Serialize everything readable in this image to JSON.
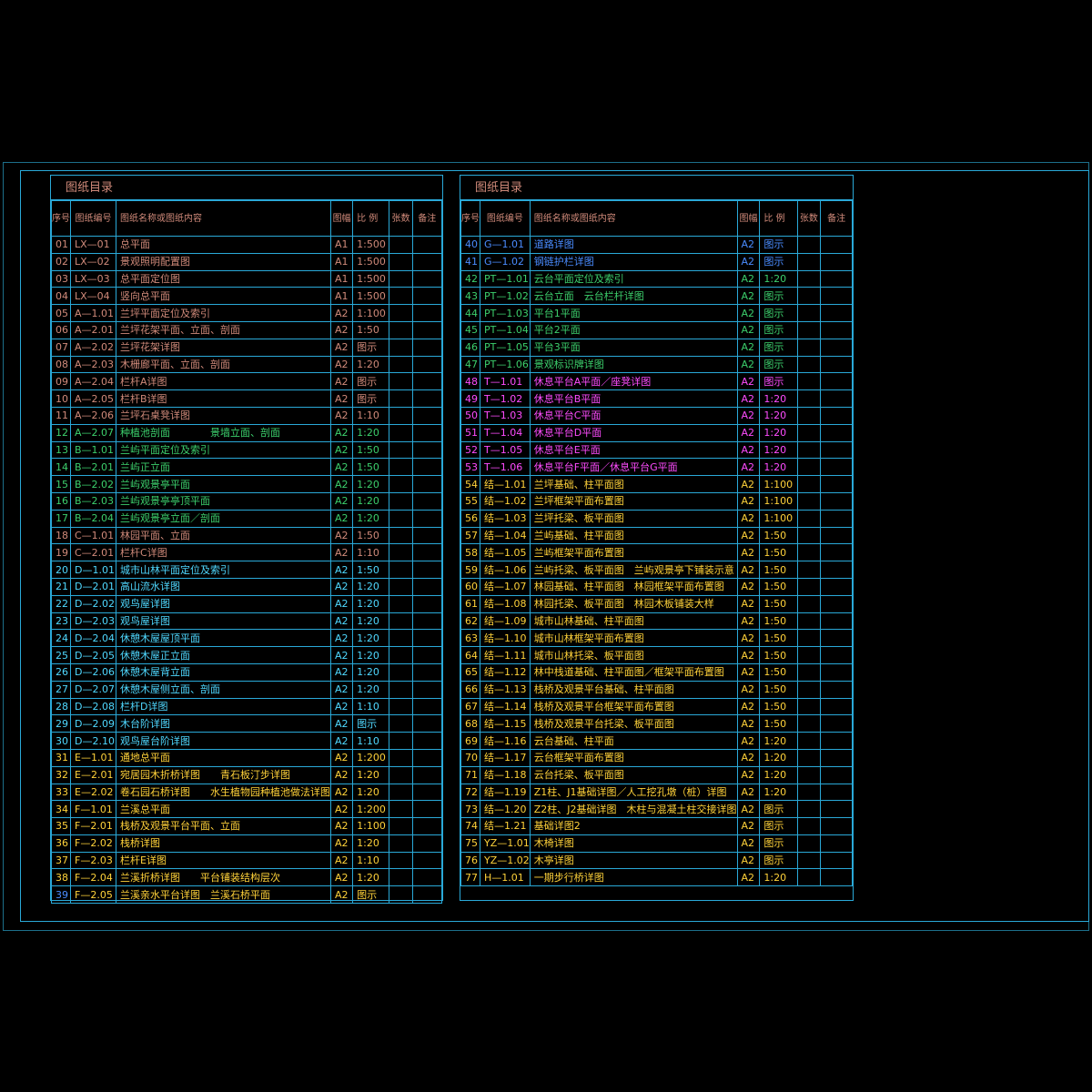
{
  "left": {
    "title": "图纸目录",
    "headers": {
      "seq": "序号",
      "code": "图纸编号",
      "name": "图纸名称或图纸内容",
      "size": "图幅",
      "scale": "比 例",
      "count": "张数",
      "note": "备注"
    },
    "rows": [
      {
        "n": "01",
        "code": "LX—01",
        "name": "总平面",
        "size": "A1",
        "scale": "1:500",
        "c": "salmon"
      },
      {
        "n": "02",
        "code": "LX—02",
        "name": "景观照明配置图",
        "size": "A1",
        "scale": "1:500",
        "c": "salmon"
      },
      {
        "n": "03",
        "code": "LX—03",
        "name": "总平面定位图",
        "size": "A1",
        "scale": "1:500",
        "c": "salmon"
      },
      {
        "n": "04",
        "code": "LX—04",
        "name": "竖向总平面",
        "size": "A1",
        "scale": "1:500",
        "c": "salmon"
      },
      {
        "n": "05",
        "code": "A—1.01",
        "name": "兰坪平面定位及索引",
        "size": "A2",
        "scale": "1:100",
        "c": "salmon"
      },
      {
        "n": "06",
        "code": "A—2.01",
        "name": "兰坪花架平面、立面、剖面",
        "size": "A2",
        "scale": "1:50",
        "c": "salmon"
      },
      {
        "n": "07",
        "code": "A—2.02",
        "name": "兰坪花架详图",
        "size": "A2",
        "scale": "图示",
        "c": "salmon"
      },
      {
        "n": "08",
        "code": "A—2.03",
        "name": "木栅廊平面、立面、剖面",
        "size": "A2",
        "scale": "1:20",
        "c": "salmon"
      },
      {
        "n": "09",
        "code": "A—2.04",
        "name": "栏杆A详图",
        "size": "A2",
        "scale": "图示",
        "c": "salmon"
      },
      {
        "n": "10",
        "code": "A—2.05",
        "name": "栏杆B详图",
        "size": "A2",
        "scale": "图示",
        "c": "salmon"
      },
      {
        "n": "11",
        "code": "A—2.06",
        "name": "兰坪石桌凳详图",
        "size": "A2",
        "scale": "1:10",
        "c": "salmon"
      },
      {
        "n": "12",
        "code": "A—2.07",
        "name": "种植池剖面　　　　景墙立面、剖面",
        "size": "A2",
        "scale": "1:20",
        "c": "green"
      },
      {
        "n": "13",
        "code": "B—1.01",
        "name": "兰屿平面定位及索引",
        "size": "A2",
        "scale": "1:50",
        "c": "green"
      },
      {
        "n": "14",
        "code": "B—2.01",
        "name": "兰屿正立面",
        "size": "A2",
        "scale": "1:50",
        "c": "green"
      },
      {
        "n": "15",
        "code": "B—2.02",
        "name": "兰屿观景亭平面",
        "size": "A2",
        "scale": "1:20",
        "c": "green"
      },
      {
        "n": "16",
        "code": "B—2.03",
        "name": "兰屿观景亭亭顶平面",
        "size": "A2",
        "scale": "1:20",
        "c": "green"
      },
      {
        "n": "17",
        "code": "B—2.04",
        "name": "兰屿观景亭立面／剖面",
        "size": "A2",
        "scale": "1:20",
        "c": "green"
      },
      {
        "n": "18",
        "code": "C—1.01",
        "name": "林园平面、立面",
        "size": "A2",
        "scale": "1:50",
        "c": "salmon"
      },
      {
        "n": "19",
        "code": "C—2.01",
        "name": "栏杆C详图",
        "size": "A2",
        "scale": "1:10",
        "c": "salmon"
      },
      {
        "n": "20",
        "code": "D—1.01",
        "name": "城市山林平面定位及索引",
        "size": "A2",
        "scale": "1:50",
        "c": "cyan"
      },
      {
        "n": "21",
        "code": "D—2.01",
        "name": "高山流水详图",
        "size": "A2",
        "scale": "1:20",
        "c": "cyan"
      },
      {
        "n": "22",
        "code": "D—2.02",
        "name": "观鸟屋详图",
        "size": "A2",
        "scale": "1:20",
        "c": "cyan"
      },
      {
        "n": "23",
        "code": "D—2.03",
        "name": "观鸟屋详图",
        "size": "A2",
        "scale": "1:20",
        "c": "cyan"
      },
      {
        "n": "24",
        "code": "D—2.04",
        "name": "休憩木屋屋顶平面",
        "size": "A2",
        "scale": "1:20",
        "c": "cyan"
      },
      {
        "n": "25",
        "code": "D—2.05",
        "name": "休憩木屋正立面",
        "size": "A2",
        "scale": "1:20",
        "c": "cyan"
      },
      {
        "n": "26",
        "code": "D—2.06",
        "name": "休憩木屋背立面",
        "size": "A2",
        "scale": "1:20",
        "c": "cyan"
      },
      {
        "n": "27",
        "code": "D—2.07",
        "name": "休憩木屋侧立面、剖面",
        "size": "A2",
        "scale": "1:20",
        "c": "cyan"
      },
      {
        "n": "28",
        "code": "D—2.08",
        "name": "栏杆D详图",
        "size": "A2",
        "scale": "1:10",
        "c": "cyan"
      },
      {
        "n": "29",
        "code": "D—2.09",
        "name": "木台阶详图",
        "size": "A2",
        "scale": "图示",
        "c": "cyan"
      },
      {
        "n": "30",
        "code": "D—2.10",
        "name": "观鸟屋台阶详图",
        "size": "A2",
        "scale": "1:10",
        "c": "cyan"
      },
      {
        "n": "31",
        "code": "E—1.01",
        "name": "通地总平面",
        "size": "A2",
        "scale": "1:200",
        "c": "yellow"
      },
      {
        "n": "32",
        "code": "E—2.01",
        "name": "宛居园木折桥详图　　青石板汀步详图",
        "size": "A2",
        "scale": "1:20",
        "c": "yellow"
      },
      {
        "n": "33",
        "code": "E—2.02",
        "name": "卷石园石桥详图　　水生植物园种植池做法详图",
        "size": "A2",
        "scale": "1:20",
        "c": "yellow"
      },
      {
        "n": "34",
        "code": "F—1.01",
        "name": "兰溪总平面",
        "size": "A2",
        "scale": "1:200",
        "c": "yellow"
      },
      {
        "n": "35",
        "code": "F—2.01",
        "name": "栈桥及观景平台平面、立面",
        "size": "A2",
        "scale": "1:100",
        "c": "yellow"
      },
      {
        "n": "36",
        "code": "F—2.02",
        "name": "栈桥详图",
        "size": "A2",
        "scale": "1:20",
        "c": "yellow"
      },
      {
        "n": "37",
        "code": "F—2.03",
        "name": "栏杆E详图",
        "size": "A2",
        "scale": "1:10",
        "c": "yellow"
      },
      {
        "n": "38",
        "code": "F—2.04",
        "name": "兰溪折桥详图　　平台铺装结构层次",
        "size": "A2",
        "scale": "1:20",
        "c": "yellow"
      },
      {
        "n": "39",
        "code": "F—2.05",
        "name": "兰溪亲水平台详图　兰溪石桥平面",
        "size": "A2",
        "scale": "图示",
        "c": "yellow",
        "nc": "blue"
      }
    ]
  },
  "right": {
    "title": "图纸目录",
    "headers": {
      "seq": "序号",
      "code": "图纸编号",
      "name": "图纸名称或图纸内容",
      "size": "图幅",
      "scale": "比 例",
      "count": "张数",
      "note": "备注"
    },
    "rows": [
      {
        "n": "40",
        "code": "G—1.01",
        "name": "道路详图",
        "size": "A2",
        "scale": "图示",
        "c": "blue"
      },
      {
        "n": "41",
        "code": "G—1.02",
        "name": "钢链护栏详图",
        "size": "A2",
        "scale": "图示",
        "c": "blue"
      },
      {
        "n": "42",
        "code": "PT—1.01",
        "name": "云台平面定位及索引",
        "size": "A2",
        "scale": "1:20",
        "c": "green"
      },
      {
        "n": "43",
        "code": "PT—1.02",
        "name": "云台立面　云台栏杆详图",
        "size": "A2",
        "scale": "图示",
        "c": "green"
      },
      {
        "n": "44",
        "code": "PT—1.03",
        "name": "平台1平面",
        "size": "A2",
        "scale": "图示",
        "c": "green"
      },
      {
        "n": "45",
        "code": "PT—1.04",
        "name": "平台2平面",
        "size": "A2",
        "scale": "图示",
        "c": "green"
      },
      {
        "n": "46",
        "code": "PT—1.05",
        "name": "平台3平面",
        "size": "A2",
        "scale": "图示",
        "c": "green"
      },
      {
        "n": "47",
        "code": "PT—1.06",
        "name": "景观标识牌详图",
        "size": "A2",
        "scale": "图示",
        "c": "green"
      },
      {
        "n": "48",
        "code": "T—1.01",
        "name": "休息平台A平面／座凳详图",
        "size": "A2",
        "scale": "图示",
        "c": "mag"
      },
      {
        "n": "49",
        "code": "T—1.02",
        "name": "休息平台B平面",
        "size": "A2",
        "scale": "1:20",
        "c": "mag"
      },
      {
        "n": "50",
        "code": "T—1.03",
        "name": "休息平台C平面",
        "size": "A2",
        "scale": "1:20",
        "c": "mag"
      },
      {
        "n": "51",
        "code": "T—1.04",
        "name": "休息平台D平面",
        "size": "A2",
        "scale": "1:20",
        "c": "mag"
      },
      {
        "n": "52",
        "code": "T—1.05",
        "name": "休息平台E平面",
        "size": "A2",
        "scale": "1:20",
        "c": "mag"
      },
      {
        "n": "53",
        "code": "T—1.06",
        "name": "休息平台F平面／休息平台G平面",
        "size": "A2",
        "scale": "1:20",
        "c": "mag"
      },
      {
        "n": "54",
        "code": "结—1.01",
        "name": "兰坪基础、柱平面图",
        "size": "A2",
        "scale": "1:100",
        "c": "yellow"
      },
      {
        "n": "55",
        "code": "结—1.02",
        "name": "兰坪框架平面布置图",
        "size": "A2",
        "scale": "1:100",
        "c": "yellow"
      },
      {
        "n": "56",
        "code": "结—1.03",
        "name": "兰坪托梁、板平面图",
        "size": "A2",
        "scale": "1:100",
        "c": "yellow"
      },
      {
        "n": "57",
        "code": "结—1.04",
        "name": "兰屿基础、柱平面图",
        "size": "A2",
        "scale": "1:50",
        "c": "yellow"
      },
      {
        "n": "58",
        "code": "结—1.05",
        "name": "兰屿框架平面布置图",
        "size": "A2",
        "scale": "1:50",
        "c": "yellow"
      },
      {
        "n": "59",
        "code": "结—1.06",
        "name": "兰屿托梁、板平面图　兰屿观景亭下铺装示意",
        "size": "A2",
        "scale": "1:50",
        "c": "yellow"
      },
      {
        "n": "60",
        "code": "结—1.07",
        "name": "林园基础、柱平面图　林园框架平面布置图",
        "size": "A2",
        "scale": "1:50",
        "c": "yellow"
      },
      {
        "n": "61",
        "code": "结—1.08",
        "name": "林园托梁、板平面图　林园木板铺装大样",
        "size": "A2",
        "scale": "1:50",
        "c": "yellow"
      },
      {
        "n": "62",
        "code": "结—1.09",
        "name": "城市山林基础、柱平面图",
        "size": "A2",
        "scale": "1:50",
        "c": "yellow"
      },
      {
        "n": "63",
        "code": "结—1.10",
        "name": "城市山林框架平面布置图",
        "size": "A2",
        "scale": "1:50",
        "c": "yellow"
      },
      {
        "n": "64",
        "code": "结—1.11",
        "name": "城市山林托梁、板平面图",
        "size": "A2",
        "scale": "1:50",
        "c": "yellow"
      },
      {
        "n": "65",
        "code": "结—1.12",
        "name": "林中栈道基础、柱平面图／框架平面布置图",
        "size": "A2",
        "scale": "1:50",
        "c": "yellow"
      },
      {
        "n": "66",
        "code": "结—1.13",
        "name": "栈桥及观景平台基础、柱平面图",
        "size": "A2",
        "scale": "1:50",
        "c": "yellow"
      },
      {
        "n": "67",
        "code": "结—1.14",
        "name": "栈桥及观景平台框架平面布置图",
        "size": "A2",
        "scale": "1:50",
        "c": "yellow"
      },
      {
        "n": "68",
        "code": "结—1.15",
        "name": "栈桥及观景平台托梁、板平面图",
        "size": "A2",
        "scale": "1:50",
        "c": "yellow"
      },
      {
        "n": "69",
        "code": "结—1.16",
        "name": "云台基础、柱平面",
        "size": "A2",
        "scale": "1:20",
        "c": "yellow"
      },
      {
        "n": "70",
        "code": "结—1.17",
        "name": "云台框架平面布置图",
        "size": "A2",
        "scale": "1:20",
        "c": "yellow"
      },
      {
        "n": "71",
        "code": "结—1.18",
        "name": "云台托梁、板平面图",
        "size": "A2",
        "scale": "1:20",
        "c": "yellow"
      },
      {
        "n": "72",
        "code": "结—1.19",
        "name": "Z1柱、J1基础详图／人工挖孔墩（桩）详图",
        "size": "A2",
        "scale": "1:20",
        "c": "yellow"
      },
      {
        "n": "73",
        "code": "结—1.20",
        "name": "Z2柱、J2基础详图　木柱与混凝土柱交接详图",
        "size": "A2",
        "scale": "图示",
        "c": "yellow"
      },
      {
        "n": "74",
        "code": "结—1.21",
        "name": "基础详图2",
        "size": "A2",
        "scale": "图示",
        "c": "yellow"
      },
      {
        "n": "75",
        "code": "YZ—1.01",
        "name": "木椅详图",
        "size": "A2",
        "scale": "图示",
        "c": "yellow"
      },
      {
        "n": "76",
        "code": "YZ—1.02",
        "name": "木亭详图",
        "size": "A2",
        "scale": "图示",
        "c": "yellow"
      },
      {
        "n": "77",
        "code": "H—1.01",
        "name": "一期步行桥详图",
        "size": "A2",
        "scale": "1:20",
        "c": "yellow"
      }
    ]
  }
}
